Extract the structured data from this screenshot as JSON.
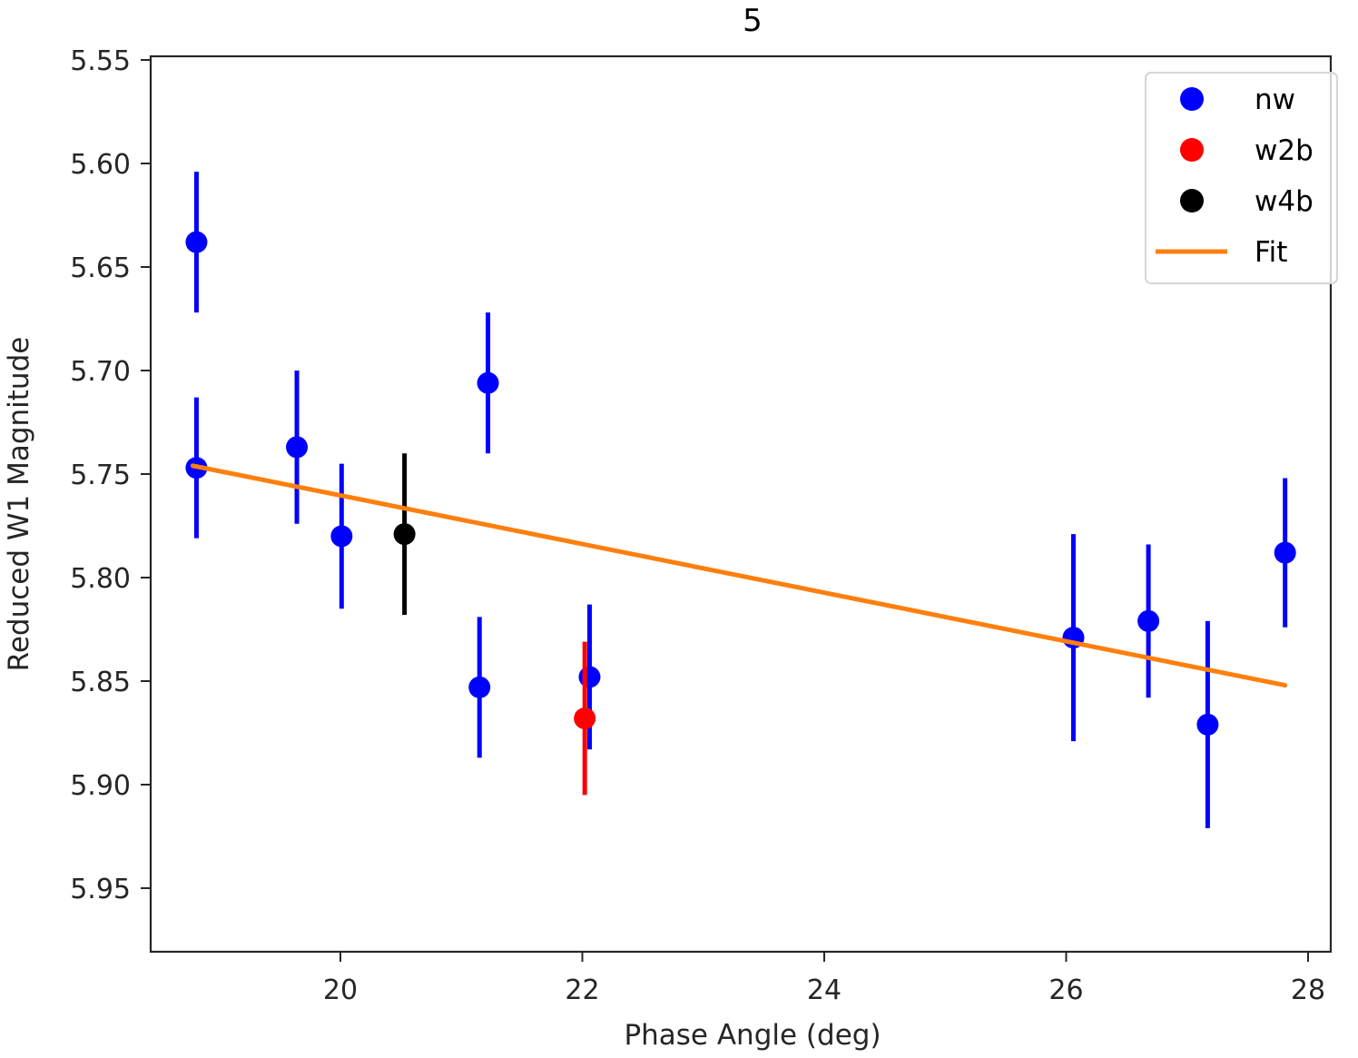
{
  "chart_data": {
    "type": "scatter",
    "title": "5",
    "xlabel": "Phase Angle (deg)",
    "ylabel": "Reduced W1 Magnitude",
    "xlim": [
      18.45,
      28.55
    ],
    "ylim": [
      5.55,
      5.98
    ],
    "y_inverted": true,
    "grid": false,
    "legend_position": "upper right",
    "xticks": [
      20,
      22,
      24,
      26,
      28
    ],
    "yticks": [
      5.55,
      5.6,
      5.65,
      5.7,
      5.75,
      5.8,
      5.85,
      5.9,
      5.95
    ],
    "xtick_labels": [
      "20",
      "22",
      "24",
      "26",
      "28"
    ],
    "ytick_labels": [
      "5.55",
      "5.60",
      "5.65",
      "5.70",
      "5.75",
      "5.80",
      "5.85",
      "5.90",
      "5.95"
    ],
    "series": [
      {
        "name": "nw",
        "color": "#0000ff",
        "kind": "errorbar",
        "points": [
          {
            "x": 18.81,
            "y": 5.638,
            "yerr": 0.034
          },
          {
            "x": 18.81,
            "y": 5.747,
            "yerr": 0.034
          },
          {
            "x": 19.64,
            "y": 5.737,
            "yerr": 0.037
          },
          {
            "x": 20.01,
            "y": 5.78,
            "yerr": 0.035
          },
          {
            "x": 21.15,
            "y": 5.853,
            "yerr": 0.034
          },
          {
            "x": 21.22,
            "y": 5.706,
            "yerr": 0.034
          },
          {
            "x": 22.06,
            "y": 5.848,
            "yerr": 0.035
          },
          {
            "x": 26.06,
            "y": 5.829,
            "yerr": 0.05
          },
          {
            "x": 26.68,
            "y": 5.821,
            "yerr": 0.037
          },
          {
            "x": 27.17,
            "y": 5.871,
            "yerr": 0.05
          },
          {
            "x": 27.81,
            "y": 5.788,
            "yerr": 0.036
          }
        ]
      },
      {
        "name": "w2b",
        "color": "#ff0000",
        "kind": "errorbar",
        "points": [
          {
            "x": 22.02,
            "y": 5.868,
            "yerr": 0.037
          }
        ]
      },
      {
        "name": "w4b",
        "color": "#000000",
        "kind": "errorbar",
        "points": [
          {
            "x": 20.53,
            "y": 5.779,
            "yerr": 0.039
          }
        ]
      },
      {
        "name": "Fit",
        "color": "#ff7f0e",
        "kind": "line",
        "points": [
          {
            "x": 18.78,
            "y": 5.746
          },
          {
            "x": 27.81,
            "y": 5.852
          }
        ]
      }
    ],
    "legend": [
      {
        "label": "nw",
        "marker": "circle",
        "color": "#0000ff"
      },
      {
        "label": "w2b",
        "marker": "circle",
        "color": "#ff0000"
      },
      {
        "label": "w4b",
        "marker": "circle",
        "color": "#000000"
      },
      {
        "label": "Fit",
        "marker": "line",
        "color": "#ff7f0e"
      }
    ]
  }
}
